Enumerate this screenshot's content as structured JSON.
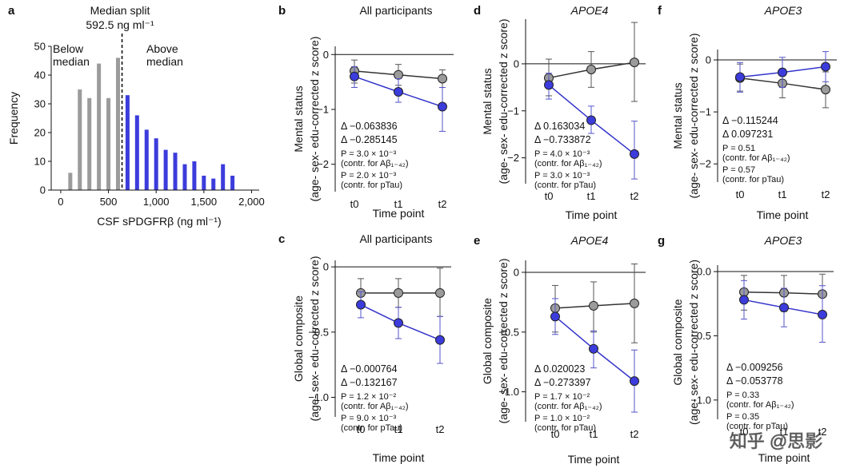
{
  "colors": {
    "gray": "#9b9b9b",
    "blue": "#3c3cdc",
    "line_gray": "#333333",
    "line_blue": "#3333cc"
  },
  "watermark": "知乎 @思影",
  "chart_data": [
    {
      "id": "a",
      "label": "a",
      "type": "bar",
      "title_lines": [
        "Median split",
        "592.5 ng ml⁻¹"
      ],
      "median_split": 592.5,
      "xlabel": "CSF sPDGFRβ (ng ml⁻¹)",
      "ylabel": "Frequency",
      "xlim": [
        -100,
        2080
      ],
      "ylim": [
        0,
        50
      ],
      "xticks": [
        0,
        500,
        1000,
        1500,
        2000
      ],
      "xtick_labels": [
        "0",
        "500",
        "1,000",
        "1,500",
        "2,000"
      ],
      "yticks": [
        0,
        10,
        20,
        30,
        40,
        50
      ],
      "bin_width": 50,
      "below_label": [
        "Below",
        "median"
      ],
      "above_label": [
        "Above",
        "median"
      ],
      "series": [
        {
          "name": "Below median",
          "x": [
            100,
            200,
            300,
            400,
            500,
            600
          ],
          "values": [
            6,
            35,
            32,
            44,
            32,
            46
          ]
        },
        {
          "name": "Above median",
          "x": [
            700,
            800,
            900,
            1000,
            1100,
            1200,
            1300,
            1400,
            1500,
            1600,
            1700,
            1800
          ],
          "values": [
            33,
            26,
            21,
            18,
            14,
            13,
            9,
            10,
            5,
            4,
            9,
            5
          ]
        }
      ]
    },
    {
      "id": "b",
      "label": "b",
      "type": "line",
      "title": "All participants",
      "title_italic": false,
      "categories": [
        "t0",
        "t1",
        "t2"
      ],
      "xlabel": "Time point",
      "ylabel": [
        "Mental status",
        "(age- sex- edu-corrected z score)"
      ],
      "ylim": [
        -2.5,
        0.15
      ],
      "yticks": [
        0,
        -1,
        -2
      ],
      "ytick_labels": [
        "0",
        "−1",
        "−2"
      ],
      "series": [
        {
          "name": "Below median",
          "color": "gray",
          "values": [
            -0.3,
            -0.37,
            -0.44
          ],
          "err_low": [
            -0.52,
            -0.56,
            -0.6
          ],
          "err_high": [
            -0.1,
            -0.18,
            -0.28
          ]
        },
        {
          "name": "Above median",
          "color": "blue",
          "values": [
            -0.4,
            -0.68,
            -0.95
          ],
          "err_low": [
            -0.6,
            -0.87,
            -1.4
          ],
          "err_high": [
            -0.22,
            -0.44,
            -0.6
          ]
        }
      ],
      "stats": [
        {
          "text": "Δ −0.063836",
          "color": "black",
          "size": "lg"
        },
        {
          "text": "Δ −0.285145",
          "color": "blue",
          "size": "lg"
        },
        {
          "text": "P = 3.0 × 10⁻³",
          "color": "black",
          "size": "sm"
        },
        {
          "text": "(contr. for Aβ₁₋₄₂)",
          "color": "black",
          "size": "sm"
        },
        {
          "text": "P = 2.0 × 10⁻³",
          "color": "black",
          "size": "sm"
        },
        {
          "text": "(contr. for pTau)",
          "color": "black",
          "size": "sm"
        }
      ]
    },
    {
      "id": "c",
      "label": "c",
      "type": "line",
      "title": "All participants",
      "title_italic": false,
      "categories": [
        "t0",
        "t1",
        "t2"
      ],
      "xlabel": "Time point",
      "ylabel": [
        "Global composite",
        "(age- sex- edu-corrected z score)"
      ],
      "ylim": [
        -1.15,
        0.05
      ],
      "yticks": [
        0,
        -0.5,
        -1.0
      ],
      "ytick_labels": [
        "0",
        "−0.5",
        "−1.0"
      ],
      "series": [
        {
          "name": "Below median",
          "color": "gray",
          "values": [
            -0.2,
            -0.2,
            -0.2
          ],
          "err_low": [
            -0.3,
            -0.31,
            -0.38
          ],
          "err_high": [
            -0.09,
            -0.09,
            -0.01
          ]
        },
        {
          "name": "Above median",
          "color": "blue",
          "values": [
            -0.29,
            -0.43,
            -0.56
          ],
          "err_low": [
            -0.39,
            -0.55,
            -0.74
          ],
          "err_high": [
            -0.19,
            -0.31,
            -0.38
          ]
        }
      ],
      "stats": [
        {
          "text": "Δ −0.000764",
          "color": "black",
          "size": "lg"
        },
        {
          "text": "Δ −0.132167",
          "color": "blue",
          "size": "lg"
        },
        {
          "text": "P = 1.2 × 10⁻²",
          "color": "black",
          "size": "sm"
        },
        {
          "text": "(contr. for Aβ₁₋₄₂)",
          "color": "black",
          "size": "sm"
        },
        {
          "text": "P = 9.0 × 10⁻³",
          "color": "black",
          "size": "sm"
        },
        {
          "text": "(contr. for pTau)",
          "color": "black",
          "size": "sm"
        }
      ]
    },
    {
      "id": "d",
      "label": "d",
      "type": "line",
      "title": "APOE4",
      "title_italic": true,
      "categories": [
        "t0",
        "t1",
        "t2"
      ],
      "xlabel": "Time point",
      "ylabel": [
        "Mental status",
        "(age- sex- edu-corrected z score)"
      ],
      "ylim": [
        -2.55,
        0.95
      ],
      "yticks": [
        0,
        -1,
        -2
      ],
      "ytick_labels": [
        "0",
        "−1",
        "−2"
      ],
      "series": [
        {
          "name": "Below median",
          "color": "gray",
          "values": [
            -0.3,
            -0.12,
            0.03
          ],
          "err_low": [
            -0.68,
            -0.5,
            -0.8
          ],
          "err_high": [
            0.1,
            0.26,
            0.88
          ]
        },
        {
          "name": "Above median",
          "color": "blue",
          "values": [
            -0.45,
            -1.2,
            -1.92
          ],
          "err_low": [
            -0.75,
            -1.48,
            -2.45
          ],
          "err_high": [
            -0.2,
            -0.9,
            -1.22
          ]
        }
      ],
      "stats": [
        {
          "text": "Δ 0.163034",
          "color": "black",
          "size": "lg"
        },
        {
          "text": "Δ −0.733872",
          "color": "blue",
          "size": "lg"
        },
        {
          "text": "P = 4.0 × 10⁻³",
          "color": "black",
          "size": "sm"
        },
        {
          "text": "(contr. for Aβ₁₋₄₂)",
          "color": "black",
          "size": "sm"
        },
        {
          "text": "P = 3.0 × 10⁻³",
          "color": "black",
          "size": "sm"
        },
        {
          "text": "(contr. for pTau)",
          "color": "black",
          "size": "sm"
        }
      ]
    },
    {
      "id": "e",
      "label": "e",
      "type": "line",
      "title": "APOE4",
      "title_italic": true,
      "categories": [
        "t0",
        "t1",
        "t2"
      ],
      "xlabel": "Time point",
      "ylabel": [
        "Global composite",
        "(age- sex- edu-corrected z score)"
      ],
      "ylim": [
        -1.25,
        0.1
      ],
      "yticks": [
        0,
        -0.5,
        -1.0
      ],
      "ytick_labels": [
        "0",
        "−0.5",
        "−1.0"
      ],
      "series": [
        {
          "name": "Below median",
          "color": "gray",
          "values": [
            -0.3,
            -0.28,
            -0.26
          ],
          "err_low": [
            -0.5,
            -0.5,
            -0.59
          ],
          "err_high": [
            -0.11,
            -0.08,
            0.07
          ]
        },
        {
          "name": "Above median",
          "color": "blue",
          "values": [
            -0.37,
            -0.64,
            -0.91
          ],
          "err_low": [
            -0.52,
            -0.8,
            -1.17
          ],
          "err_high": [
            -0.22,
            -0.49,
            -0.65
          ]
        }
      ],
      "stats": [
        {
          "text": "Δ 0.020023",
          "color": "black",
          "size": "lg"
        },
        {
          "text": "Δ −0.273397",
          "color": "blue",
          "size": "lg"
        },
        {
          "text": "P = 1.7 × 10⁻²",
          "color": "black",
          "size": "sm"
        },
        {
          "text": "(contr. for Aβ₁₋₄₂)",
          "color": "black",
          "size": "sm"
        },
        {
          "text": "P = 1.0 × 10⁻²",
          "color": "black",
          "size": "sm"
        },
        {
          "text": "(contr. for pTau)",
          "color": "black",
          "size": "sm"
        }
      ]
    },
    {
      "id": "f",
      "label": "f",
      "type": "line",
      "title": "APOE3",
      "title_italic": true,
      "categories": [
        "t0",
        "t1",
        "t2"
      ],
      "xlabel": "Time point",
      "ylabel": [
        "Mental status",
        "(age- sex- edu-corrected z score)"
      ],
      "ylim": [
        -2.35,
        0.2
      ],
      "yticks": [
        0,
        -1,
        -2
      ],
      "ytick_labels": [
        "0",
        "−1",
        "−2"
      ],
      "series": [
        {
          "name": "Below median",
          "color": "gray",
          "values": [
            -0.35,
            -0.45,
            -0.57
          ],
          "err_low": [
            -0.6,
            -0.73,
            -0.92
          ],
          "err_high": [
            -0.08,
            -0.17,
            -0.23
          ]
        },
        {
          "name": "Above median",
          "color": "blue",
          "values": [
            -0.33,
            -0.24,
            -0.13
          ],
          "err_low": [
            -0.62,
            -0.53,
            -0.42
          ],
          "err_high": [
            -0.05,
            0.05,
            0.16
          ]
        }
      ],
      "stats": [
        {
          "text": "Δ −0.115244",
          "color": "black",
          "size": "lg"
        },
        {
          "text": "Δ 0.097231",
          "color": "blue",
          "size": "lg"
        },
        {
          "text": "P = 0.51",
          "color": "black",
          "size": "sm"
        },
        {
          "text": "(contr. for Aβ₁₋₄₂)",
          "color": "black",
          "size": "sm"
        },
        {
          "text": "P = 0.57",
          "color": "black",
          "size": "sm"
        },
        {
          "text": "(contr. for pTau)",
          "color": "black",
          "size": "sm"
        }
      ]
    },
    {
      "id": "g",
      "label": "g",
      "type": "line",
      "title": "APOE3",
      "title_italic": true,
      "categories": [
        "t0",
        "t1",
        "t2"
      ],
      "xlabel": "Time point",
      "ylabel": [
        "Global composite",
        "(age- sex- edu-corrected z score)"
      ],
      "ylim": [
        -1.15,
        0.05
      ],
      "yticks": [
        0,
        -0.5,
        -1.0
      ],
      "ytick_labels": [
        "0.0",
        "−0.5",
        "−1.0"
      ],
      "series": [
        {
          "name": "Below median",
          "color": "gray",
          "values": [
            -0.16,
            -0.165,
            -0.175
          ],
          "err_low": [
            -0.3,
            -0.31,
            -0.33
          ],
          "err_high": [
            -0.03,
            -0.03,
            -0.02
          ]
        },
        {
          "name": "Above median",
          "color": "blue",
          "values": [
            -0.22,
            -0.28,
            -0.335
          ],
          "err_low": [
            -0.37,
            -0.43,
            -0.55
          ],
          "err_high": [
            -0.07,
            -0.13,
            -0.11
          ]
        }
      ],
      "stats": [
        {
          "text": "Δ −0.009256",
          "color": "black",
          "size": "lg"
        },
        {
          "text": "Δ −0.053778",
          "color": "blue",
          "size": "lg"
        },
        {
          "text": "P = 0.33",
          "color": "black",
          "size": "sm"
        },
        {
          "text": "(contr. for Aβ₁₋₄₂)",
          "color": "black",
          "size": "sm"
        },
        {
          "text": "P = 0.35",
          "color": "black",
          "size": "sm"
        },
        {
          "text": "(contr. for pTau)",
          "color": "black",
          "size": "sm"
        }
      ]
    }
  ]
}
